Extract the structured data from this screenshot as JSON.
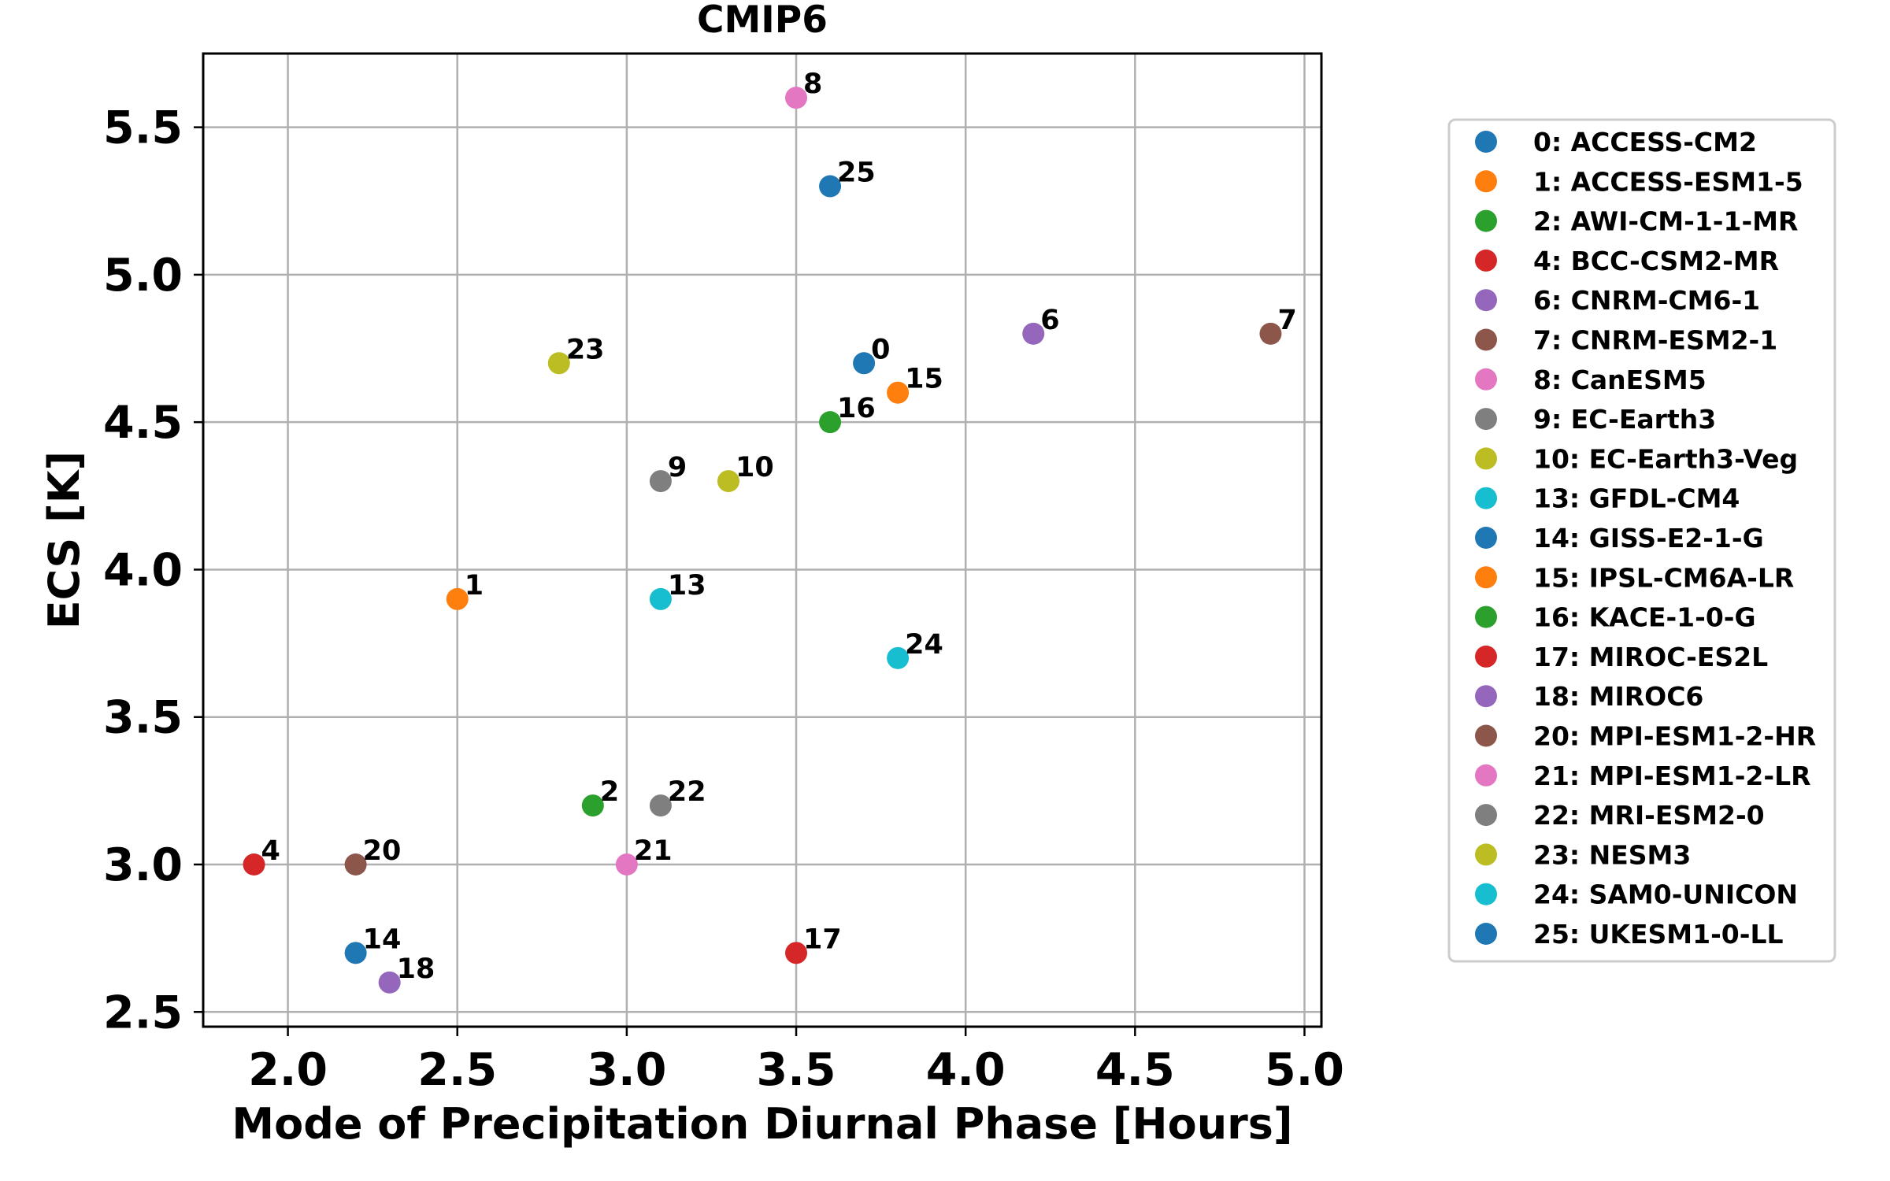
{
  "chart_data": {
    "type": "scatter",
    "title": "CMIP6",
    "xlabel": "Mode of Precipitation Diurnal Phase [Hours]",
    "ylabel": "ECS [K]",
    "xlim": [
      1.75,
      5.05
    ],
    "ylim": [
      2.45,
      5.75
    ],
    "xticks": [
      "2.0",
      "2.5",
      "3.0",
      "3.5",
      "4.0",
      "4.5",
      "5.0"
    ],
    "yticks": [
      "2.5",
      "3.0",
      "3.5",
      "4.0",
      "4.5",
      "5.0",
      "5.5"
    ],
    "grid": true,
    "legend_position": "right, outside plot area",
    "points": [
      {
        "label": "0",
        "x": 3.7,
        "y": 4.7,
        "color": "#1f77b4"
      },
      {
        "label": "1",
        "x": 2.5,
        "y": 3.9,
        "color": "#ff7f0e"
      },
      {
        "label": "2",
        "x": 2.9,
        "y": 3.2,
        "color": "#2ca02c"
      },
      {
        "label": "4",
        "x": 1.9,
        "y": 3.0,
        "color": "#d62728"
      },
      {
        "label": "6",
        "x": 4.2,
        "y": 4.8,
        "color": "#9467bd"
      },
      {
        "label": "7",
        "x": 4.9,
        "y": 4.8,
        "color": "#8c564b"
      },
      {
        "label": "8",
        "x": 3.5,
        "y": 5.6,
        "color": "#e377c2"
      },
      {
        "label": "9",
        "x": 3.1,
        "y": 4.3,
        "color": "#7f7f7f"
      },
      {
        "label": "10",
        "x": 3.3,
        "y": 4.3,
        "color": "#bcbd22"
      },
      {
        "label": "13",
        "x": 3.1,
        "y": 3.9,
        "color": "#17becf"
      },
      {
        "label": "14",
        "x": 2.2,
        "y": 2.7,
        "color": "#1f77b4"
      },
      {
        "label": "15",
        "x": 3.8,
        "y": 4.6,
        "color": "#ff7f0e"
      },
      {
        "label": "16",
        "x": 3.6,
        "y": 4.5,
        "color": "#2ca02c"
      },
      {
        "label": "17",
        "x": 3.5,
        "y": 2.7,
        "color": "#d62728"
      },
      {
        "label": "18",
        "x": 2.3,
        "y": 2.6,
        "color": "#9467bd"
      },
      {
        "label": "20",
        "x": 2.2,
        "y": 3.0,
        "color": "#8c564b"
      },
      {
        "label": "21",
        "x": 3.0,
        "y": 3.0,
        "color": "#e377c2"
      },
      {
        "label": "22",
        "x": 3.1,
        "y": 3.2,
        "color": "#7f7f7f"
      },
      {
        "label": "23",
        "x": 2.8,
        "y": 4.7,
        "color": "#bcbd22"
      },
      {
        "label": "24",
        "x": 3.8,
        "y": 3.7,
        "color": "#17becf"
      },
      {
        "label": "25",
        "x": 3.6,
        "y": 5.3,
        "color": "#1f77b4"
      }
    ],
    "legend": [
      {
        "text": "0: ACCESS-CM2",
        "color": "#1f77b4"
      },
      {
        "text": "1: ACCESS-ESM1-5",
        "color": "#ff7f0e"
      },
      {
        "text": "2: AWI-CM-1-1-MR",
        "color": "#2ca02c"
      },
      {
        "text": "4: BCC-CSM2-MR",
        "color": "#d62728"
      },
      {
        "text": "6: CNRM-CM6-1",
        "color": "#9467bd"
      },
      {
        "text": "7: CNRM-ESM2-1",
        "color": "#8c564b"
      },
      {
        "text": "8: CanESM5",
        "color": "#e377c2"
      },
      {
        "text": "9: EC-Earth3",
        "color": "#7f7f7f"
      },
      {
        "text": "10: EC-Earth3-Veg",
        "color": "#bcbd22"
      },
      {
        "text": "13: GFDL-CM4",
        "color": "#17becf"
      },
      {
        "text": "14: GISS-E2-1-G",
        "color": "#1f77b4"
      },
      {
        "text": "15: IPSL-CM6A-LR",
        "color": "#ff7f0e"
      },
      {
        "text": "16: KACE-1-0-G",
        "color": "#2ca02c"
      },
      {
        "text": "17: MIROC-ES2L",
        "color": "#d62728"
      },
      {
        "text": "18: MIROC6",
        "color": "#9467bd"
      },
      {
        "text": "20: MPI-ESM1-2-HR",
        "color": "#8c564b"
      },
      {
        "text": "21: MPI-ESM1-2-LR",
        "color": "#e377c2"
      },
      {
        "text": "22: MRI-ESM2-0",
        "color": "#7f7f7f"
      },
      {
        "text": "23: NESM3",
        "color": "#bcbd22"
      },
      {
        "text": "24: SAM0-UNICON",
        "color": "#17becf"
      },
      {
        "text": "25: UKESM1-0-LL",
        "color": "#1f77b4"
      }
    ]
  }
}
